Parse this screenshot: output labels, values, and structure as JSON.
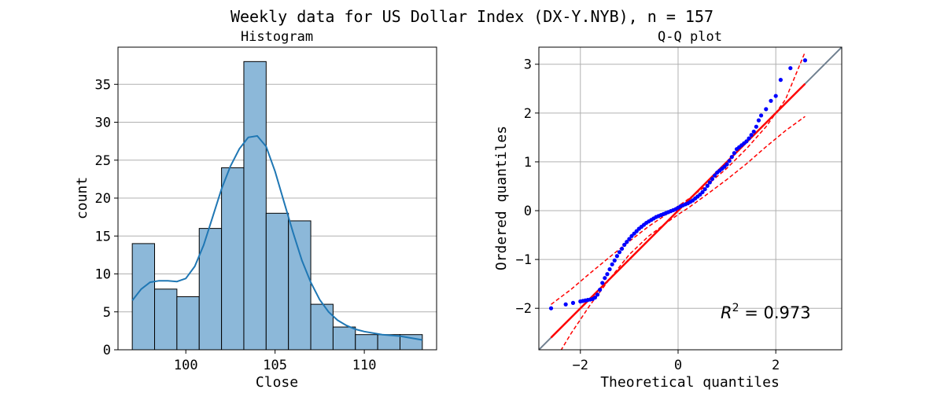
{
  "figure": {
    "suptitle": "Weekly data for US Dollar Index (DX-Y.NYB), n = 157"
  },
  "chart_data": [
    {
      "type": "bar",
      "title": "Histogram",
      "xlabel": "Close",
      "ylabel": "count",
      "bin_edges": [
        97.0,
        98.25,
        99.5,
        100.75,
        102.0,
        103.25,
        104.5,
        105.75,
        107.0,
        108.25,
        109.5,
        110.75,
        112.0,
        113.25
      ],
      "values": [
        14,
        8,
        7,
        16,
        24,
        38,
        18,
        17,
        6,
        3,
        2,
        2,
        2
      ],
      "kde": {
        "x": [
          97.0,
          97.5,
          98.0,
          98.5,
          99.0,
          99.5,
          100.0,
          100.5,
          101.0,
          101.5,
          102.0,
          102.5,
          103.0,
          103.5,
          104.0,
          104.5,
          105.0,
          105.5,
          106.0,
          106.5,
          107.0,
          107.5,
          108.0,
          108.5,
          109.0,
          109.5,
          110.0,
          111.0,
          112.0,
          113.25
        ],
        "y": [
          6.5,
          8.0,
          8.9,
          9.1,
          9.1,
          9.0,
          9.4,
          11.0,
          13.8,
          17.5,
          21.2,
          24.2,
          26.5,
          28.0,
          28.2,
          26.8,
          23.5,
          19.5,
          15.5,
          11.8,
          8.9,
          6.6,
          5.0,
          3.9,
          3.2,
          2.7,
          2.4,
          2.0,
          1.8,
          1.3
        ]
      },
      "xticks": [
        100,
        105,
        110
      ],
      "yticks": [
        0,
        5,
        10,
        15,
        20,
        25,
        30,
        35
      ],
      "xlim": [
        96.2,
        114.05
      ],
      "ylim": [
        0,
        39.9
      ],
      "grid": "y",
      "bar_color": "#8cb8d9",
      "line_color": "#1f77b4"
    },
    {
      "type": "scatter",
      "title": "Q-Q plot",
      "xlabel": "Theoretical quantiles",
      "ylabel": "Ordered quantiles",
      "xticks": [
        -2,
        0,
        2
      ],
      "yticks": [
        -2,
        -1,
        0,
        1,
        2,
        3
      ],
      "xlim": [
        -2.85,
        3.35
      ],
      "ylim": [
        -2.85,
        3.35
      ],
      "grid": "both",
      "annotation": {
        "r_symbol": "R",
        "exponent": "2",
        "value_text": " = 0.973"
      },
      "points": {
        "x": [
          -2.6,
          -2.3,
          -2.15,
          -2.0,
          -1.95,
          -1.9,
          -1.85,
          -1.8,
          -1.75,
          -1.7,
          -1.65,
          -1.6,
          -1.55,
          -1.5,
          -1.45,
          -1.4,
          -1.35,
          -1.3,
          -1.25,
          -1.2,
          -1.15,
          -1.1,
          -1.05,
          -1.0,
          -0.95,
          -0.9,
          -0.85,
          -0.8,
          -0.75,
          -0.7,
          -0.65,
          -0.6,
          -0.55,
          -0.5,
          -0.45,
          -0.4,
          -0.35,
          -0.3,
          -0.25,
          -0.2,
          -0.15,
          -0.1,
          -0.05,
          0.0,
          0.05,
          0.1,
          0.15,
          0.2,
          0.25,
          0.3,
          0.35,
          0.4,
          0.45,
          0.5,
          0.55,
          0.6,
          0.65,
          0.7,
          0.75,
          0.8,
          0.85,
          0.9,
          0.95,
          1.0,
          1.05,
          1.1,
          1.15,
          1.2,
          1.25,
          1.3,
          1.35,
          1.4,
          1.45,
          1.5,
          1.55,
          1.6,
          1.65,
          1.7,
          1.8,
          1.9,
          2.0,
          2.1,
          2.3,
          2.6
        ],
        "y": [
          -2.0,
          -1.92,
          -1.89,
          -1.86,
          -1.85,
          -1.84,
          -1.83,
          -1.82,
          -1.81,
          -1.78,
          -1.72,
          -1.62,
          -1.48,
          -1.38,
          -1.3,
          -1.2,
          -1.1,
          -1.02,
          -0.93,
          -0.85,
          -0.78,
          -0.7,
          -0.64,
          -0.58,
          -0.52,
          -0.47,
          -0.42,
          -0.37,
          -0.33,
          -0.29,
          -0.25,
          -0.22,
          -0.19,
          -0.16,
          -0.13,
          -0.11,
          -0.09,
          -0.07,
          -0.05,
          -0.03,
          -0.01,
          0.01,
          0.03,
          0.06,
          0.09,
          0.11,
          0.13,
          0.15,
          0.18,
          0.21,
          0.25,
          0.29,
          0.33,
          0.38,
          0.44,
          0.51,
          0.58,
          0.65,
          0.72,
          0.78,
          0.82,
          0.86,
          0.9,
          0.95,
          1.02,
          1.1,
          1.18,
          1.26,
          1.3,
          1.34,
          1.38,
          1.42,
          1.48,
          1.55,
          1.62,
          1.72,
          1.85,
          1.95,
          2.08,
          2.25,
          2.35,
          2.68,
          2.92,
          3.08
        ]
      },
      "fit_line": {
        "slope": 1.0,
        "intercept": 0.0,
        "x_range": [
          -2.6,
          2.6
        ],
        "color": "#ff0000"
      },
      "reference_line": {
        "slope": 1,
        "intercept": 0,
        "color": "#708090"
      },
      "confidence_band": {
        "x": [
          -2.6,
          -2.2,
          -1.8,
          -1.4,
          -1.0,
          -0.6,
          -0.2,
          0.0,
          0.2,
          0.6,
          1.0,
          1.4,
          1.8,
          2.2,
          2.6
        ],
        "upper": [
          -1.92,
          -1.62,
          -1.28,
          -0.95,
          -0.63,
          -0.32,
          -0.05,
          0.09,
          0.23,
          0.53,
          0.87,
          1.27,
          1.72,
          2.28,
          3.25
        ],
        "lower": [
          -3.2,
          -2.53,
          -1.93,
          -1.4,
          -0.9,
          -0.52,
          -0.22,
          -0.08,
          0.05,
          0.34,
          0.64,
          0.96,
          1.31,
          1.64,
          1.93
        ]
      }
    }
  ]
}
